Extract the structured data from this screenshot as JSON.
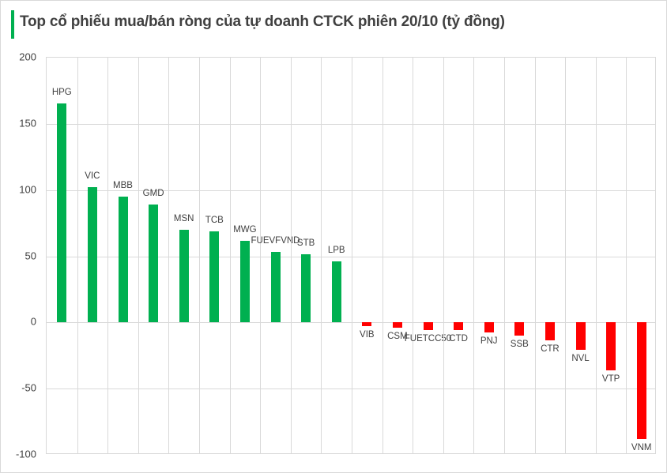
{
  "header": {
    "title": "Top cổ phiếu mua/bán ròng của tự doanh CTCK phiên 20/10 (tỷ đồng)",
    "accent_color": "#00b050"
  },
  "colors": {
    "positive": "#00b050",
    "negative": "#ff0000",
    "grid": "#d9d9d9",
    "text": "#404040"
  },
  "chart_data": {
    "type": "bar",
    "title": "Top cổ phiếu mua/bán ròng của tự doanh CTCK phiên 20/10 (tỷ đồng)",
    "xlabel": "",
    "ylabel": "",
    "ylim": [
      -100,
      200
    ],
    "yticks": [
      200,
      150,
      100,
      50,
      0,
      -50,
      -100
    ],
    "grid": true,
    "legend": "none",
    "categories": [
      "HPG",
      "VIC",
      "MBB",
      "GMD",
      "MSN",
      "TCB",
      "MWG",
      "FUEVFVND",
      "STB",
      "LPB",
      "VIB",
      "CSM",
      "FUETCC50",
      "CTD",
      "PNJ",
      "SSB",
      "CTR",
      "NVL",
      "VTP",
      "VNM"
    ],
    "values": [
      165.5,
      102,
      95,
      89,
      70,
      69,
      61.7,
      53.3,
      51.7,
      46.4,
      -2.6,
      -3.8,
      -5.6,
      -6,
      -7.4,
      -10.2,
      -13.3,
      -20.7,
      -36.2,
      -87.8
    ]
  }
}
